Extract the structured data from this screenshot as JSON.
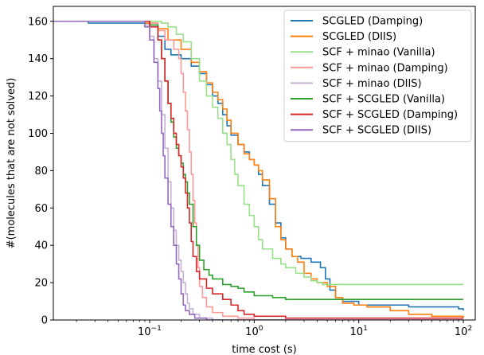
{
  "chart_data": {
    "type": "line",
    "step": true,
    "xlabel": "time cost (s)",
    "ylabel": "#(molecules that are not solved)",
    "xscale": "log",
    "xlim": [
      0.012,
      130
    ],
    "ylim": [
      0,
      168
    ],
    "x_tick_labels": [
      {
        "value": 0.1,
        "base": "10",
        "exp": "−1"
      },
      {
        "value": 1,
        "base": "10",
        "exp": "0"
      },
      {
        "value": 10,
        "base": "10",
        "exp": "1"
      },
      {
        "value": 100,
        "base": "10",
        "exp": "2"
      }
    ],
    "y_ticks": [
      0,
      20,
      40,
      60,
      80,
      100,
      120,
      140,
      160
    ],
    "grid": false,
    "legend_placement": "top-right",
    "series": [
      {
        "name": "SCGLED (Damping)",
        "color": "#1f77b4",
        "points": [
          [
            0.012,
            160
          ],
          [
            0.026,
            159
          ],
          [
            0.04,
            159
          ],
          [
            0.08,
            159
          ],
          [
            0.1,
            158
          ],
          [
            0.12,
            152
          ],
          [
            0.14,
            145
          ],
          [
            0.16,
            142
          ],
          [
            0.2,
            140
          ],
          [
            0.25,
            136
          ],
          [
            0.3,
            132
          ],
          [
            0.35,
            126
          ],
          [
            0.4,
            120
          ],
          [
            0.45,
            116
          ],
          [
            0.5,
            110
          ],
          [
            0.55,
            104
          ],
          [
            0.6,
            99
          ],
          [
            0.7,
            94
          ],
          [
            0.8,
            90
          ],
          [
            0.9,
            86
          ],
          [
            1.0,
            83
          ],
          [
            1.1,
            78
          ],
          [
            1.2,
            72
          ],
          [
            1.4,
            62
          ],
          [
            1.6,
            52
          ],
          [
            1.8,
            44
          ],
          [
            2.0,
            38
          ],
          [
            2.3,
            34
          ],
          [
            2.8,
            33
          ],
          [
            3.5,
            31
          ],
          [
            4.3,
            28
          ],
          [
            4.8,
            22
          ],
          [
            5.3,
            16
          ],
          [
            6.0,
            12
          ],
          [
            7.0,
            10
          ],
          [
            10,
            8
          ],
          [
            30,
            7
          ],
          [
            80,
            7
          ],
          [
            90,
            6
          ],
          [
            100,
            5
          ]
        ]
      },
      {
        "name": "SCGLED (DIIS)",
        "color": "#ff7f0e",
        "points": [
          [
            0.012,
            160
          ],
          [
            0.05,
            160
          ],
          [
            0.09,
            159
          ],
          [
            0.12,
            156
          ],
          [
            0.15,
            150
          ],
          [
            0.2,
            145
          ],
          [
            0.25,
            138
          ],
          [
            0.3,
            133
          ],
          [
            0.35,
            127
          ],
          [
            0.4,
            122
          ],
          [
            0.45,
            118
          ],
          [
            0.5,
            113
          ],
          [
            0.55,
            107
          ],
          [
            0.6,
            100
          ],
          [
            0.7,
            94
          ],
          [
            0.8,
            89
          ],
          [
            0.9,
            86
          ],
          [
            1.0,
            83
          ],
          [
            1.1,
            80
          ],
          [
            1.2,
            75
          ],
          [
            1.4,
            65
          ],
          [
            1.6,
            50
          ],
          [
            1.8,
            43
          ],
          [
            2.0,
            38
          ],
          [
            2.3,
            34
          ],
          [
            2.6,
            31
          ],
          [
            3.0,
            25
          ],
          [
            3.5,
            22
          ],
          [
            4.0,
            20
          ],
          [
            5.0,
            18
          ],
          [
            6.0,
            12
          ],
          [
            7.0,
            9
          ],
          [
            9.0,
            8
          ],
          [
            12,
            7
          ],
          [
            20,
            5
          ],
          [
            30,
            3
          ],
          [
            50,
            2
          ],
          [
            100,
            1
          ]
        ]
      },
      {
        "name": "SCF + minao (Vanilla)",
        "color": "#98df8a",
        "points": [
          [
            0.012,
            160
          ],
          [
            0.1,
            160
          ],
          [
            0.13,
            159
          ],
          [
            0.15,
            157
          ],
          [
            0.18,
            153
          ],
          [
            0.21,
            149
          ],
          [
            0.25,
            140
          ],
          [
            0.3,
            128
          ],
          [
            0.35,
            120
          ],
          [
            0.4,
            114
          ],
          [
            0.45,
            108
          ],
          [
            0.5,
            100
          ],
          [
            0.55,
            94
          ],
          [
            0.6,
            86
          ],
          [
            0.65,
            78
          ],
          [
            0.7,
            72
          ],
          [
            0.8,
            62
          ],
          [
            0.9,
            56
          ],
          [
            1.0,
            50
          ],
          [
            1.1,
            43
          ],
          [
            1.2,
            38
          ],
          [
            1.5,
            33
          ],
          [
            1.8,
            30
          ],
          [
            2.0,
            28
          ],
          [
            2.5,
            25
          ],
          [
            3.0,
            23
          ],
          [
            3.5,
            21
          ],
          [
            4.0,
            20
          ],
          [
            4.5,
            19
          ],
          [
            100,
            19
          ]
        ]
      },
      {
        "name": "SCF + minao (Damping)",
        "color": "#ff9896",
        "points": [
          [
            0.012,
            160
          ],
          [
            0.08,
            160
          ],
          [
            0.1,
            159
          ],
          [
            0.12,
            155
          ],
          [
            0.14,
            150
          ],
          [
            0.17,
            145
          ],
          [
            0.19,
            140
          ],
          [
            0.2,
            132
          ],
          [
            0.21,
            122
          ],
          [
            0.22,
            112
          ],
          [
            0.23,
            102
          ],
          [
            0.24,
            90
          ],
          [
            0.25,
            78
          ],
          [
            0.26,
            64
          ],
          [
            0.27,
            52
          ],
          [
            0.28,
            40
          ],
          [
            0.29,
            28
          ],
          [
            0.3,
            18
          ],
          [
            0.32,
            12
          ],
          [
            0.35,
            7
          ],
          [
            0.4,
            4
          ],
          [
            0.5,
            2
          ],
          [
            0.7,
            1
          ],
          [
            1.0,
            0
          ],
          [
            100,
            0
          ]
        ]
      },
      {
        "name": "SCF + minao (DIIS)",
        "color": "#c5b0d5",
        "points": [
          [
            0.012,
            160
          ],
          [
            0.08,
            160
          ],
          [
            0.09,
            158
          ],
          [
            0.1,
            152
          ],
          [
            0.11,
            140
          ],
          [
            0.12,
            128
          ],
          [
            0.13,
            110
          ],
          [
            0.14,
            92
          ],
          [
            0.15,
            74
          ],
          [
            0.16,
            60
          ],
          [
            0.17,
            48
          ],
          [
            0.18,
            40
          ],
          [
            0.19,
            32
          ],
          [
            0.2,
            26
          ],
          [
            0.21,
            20
          ],
          [
            0.22,
            14
          ],
          [
            0.23,
            9
          ],
          [
            0.24,
            6
          ],
          [
            0.26,
            3
          ],
          [
            0.3,
            1
          ],
          [
            0.4,
            0
          ],
          [
            100,
            0
          ]
        ]
      },
      {
        "name": "SCF + SCGLED (Vanilla)",
        "color": "#2ca02c",
        "points": [
          [
            0.012,
            160
          ],
          [
            0.08,
            160
          ],
          [
            0.1,
            158
          ],
          [
            0.12,
            150
          ],
          [
            0.13,
            140
          ],
          [
            0.14,
            128
          ],
          [
            0.15,
            116
          ],
          [
            0.16,
            106
          ],
          [
            0.17,
            98
          ],
          [
            0.18,
            92
          ],
          [
            0.19,
            88
          ],
          [
            0.2,
            84
          ],
          [
            0.21,
            78
          ],
          [
            0.22,
            74
          ],
          [
            0.23,
            68
          ],
          [
            0.24,
            62
          ],
          [
            0.26,
            50
          ],
          [
            0.28,
            40
          ],
          [
            0.3,
            32
          ],
          [
            0.33,
            27
          ],
          [
            0.37,
            24
          ],
          [
            0.4,
            22
          ],
          [
            0.5,
            19
          ],
          [
            0.6,
            18
          ],
          [
            0.7,
            17
          ],
          [
            0.8,
            15
          ],
          [
            1.0,
            13
          ],
          [
            1.5,
            12
          ],
          [
            2.0,
            11
          ],
          [
            100,
            11
          ]
        ]
      },
      {
        "name": "SCF + SCGLED (Damping)",
        "color": "#d62728",
        "points": [
          [
            0.012,
            160
          ],
          [
            0.08,
            160
          ],
          [
            0.1,
            157
          ],
          [
            0.12,
            150
          ],
          [
            0.13,
            140
          ],
          [
            0.14,
            128
          ],
          [
            0.15,
            116
          ],
          [
            0.16,
            108
          ],
          [
            0.17,
            100
          ],
          [
            0.18,
            94
          ],
          [
            0.19,
            88
          ],
          [
            0.2,
            82
          ],
          [
            0.21,
            76
          ],
          [
            0.22,
            68
          ],
          [
            0.23,
            60
          ],
          [
            0.24,
            52
          ],
          [
            0.25,
            42
          ],
          [
            0.26,
            34
          ],
          [
            0.28,
            26
          ],
          [
            0.3,
            22
          ],
          [
            0.35,
            17
          ],
          [
            0.4,
            14
          ],
          [
            0.5,
            11
          ],
          [
            0.6,
            8
          ],
          [
            0.7,
            5
          ],
          [
            0.8,
            3
          ],
          [
            1.0,
            2
          ],
          [
            2.0,
            1
          ],
          [
            100,
            1
          ]
        ]
      },
      {
        "name": "SCF + SCGLED (DIIS)",
        "color": "#9467bd",
        "points": [
          [
            0.012,
            160
          ],
          [
            0.08,
            160
          ],
          [
            0.09,
            157
          ],
          [
            0.1,
            150
          ],
          [
            0.11,
            138
          ],
          [
            0.12,
            124
          ],
          [
            0.125,
            112
          ],
          [
            0.13,
            100
          ],
          [
            0.135,
            88
          ],
          [
            0.14,
            76
          ],
          [
            0.15,
            62
          ],
          [
            0.16,
            50
          ],
          [
            0.17,
            40
          ],
          [
            0.18,
            30
          ],
          [
            0.19,
            22
          ],
          [
            0.2,
            14
          ],
          [
            0.21,
            8
          ],
          [
            0.22,
            5
          ],
          [
            0.24,
            3
          ],
          [
            0.27,
            1
          ],
          [
            0.35,
            0
          ],
          [
            100,
            0
          ]
        ]
      }
    ]
  }
}
